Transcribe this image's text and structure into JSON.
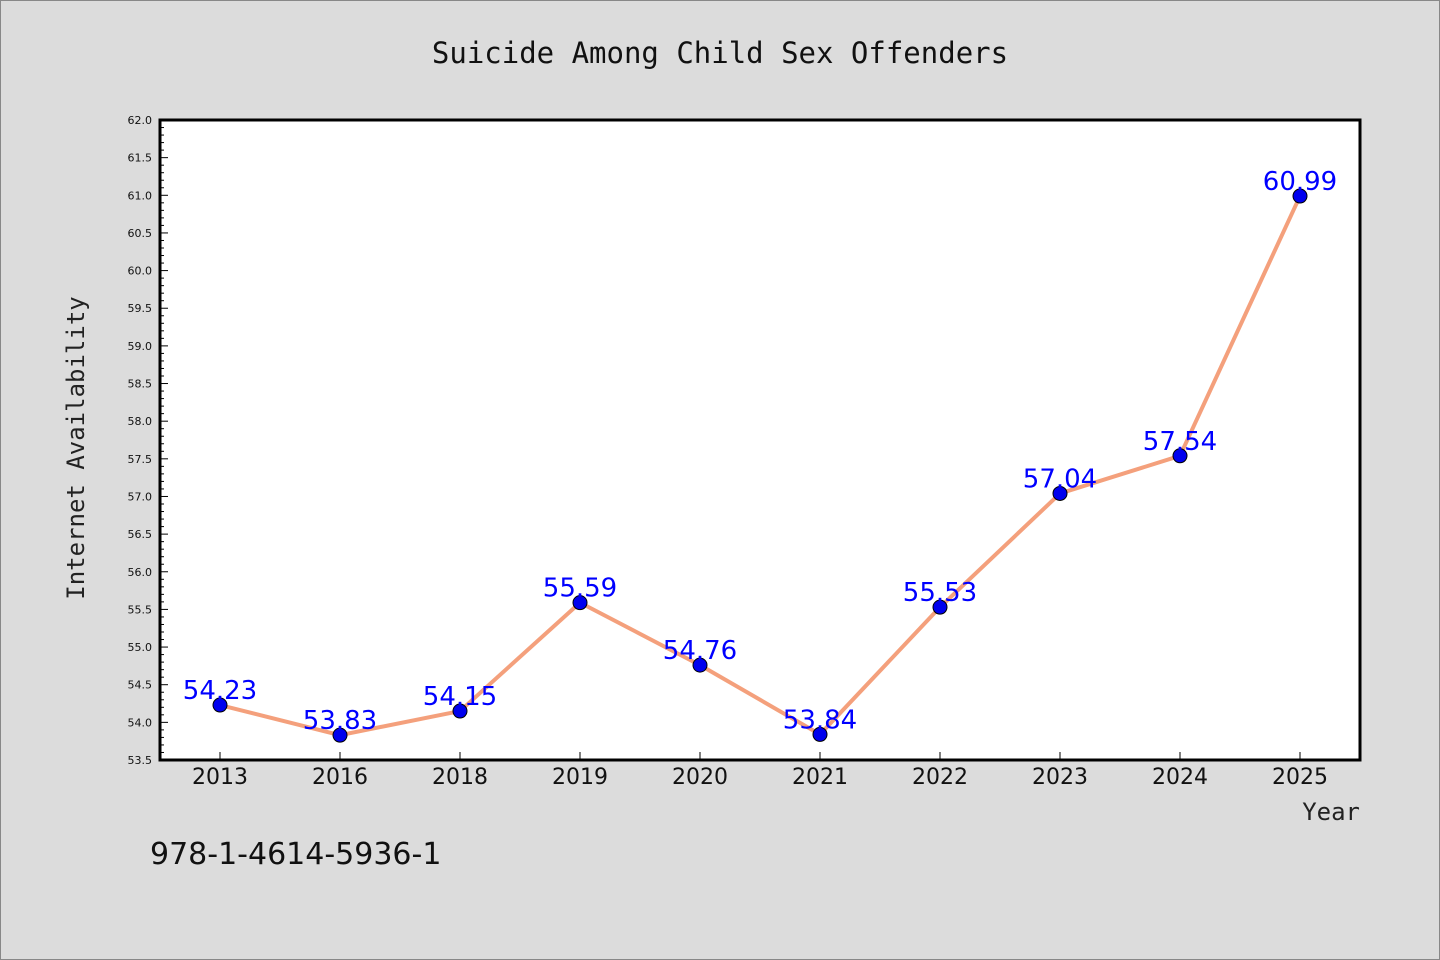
{
  "chart_data": {
    "type": "line",
    "title": "Suicide Among Child Sex Offenders",
    "xlabel": "Year",
    "ylabel": "Internet Availability",
    "categories": [
      "2013",
      "2016",
      "2018",
      "2019",
      "2020",
      "2021",
      "2022",
      "2023",
      "2024",
      "2025"
    ],
    "series": [
      {
        "values": [
          54.23,
          53.83,
          54.15,
          55.59,
          54.76,
          53.84,
          55.53,
          57.04,
          57.54,
          60.99
        ],
        "color": "#f4a07c",
        "marker_color": "#0000ee"
      }
    ],
    "data_labels": [
      "54.23",
      "53.83",
      "54.15",
      "55.59",
      "54.76",
      "53.84",
      "55.53",
      "57.04",
      "57.54",
      "60.99"
    ],
    "ylim": [
      53.5,
      62.0
    ],
    "yticks": [
      "53.5",
      "54.0",
      "54.5",
      "55.0",
      "55.5",
      "56.0",
      "56.5",
      "57.0",
      "57.5",
      "58.0",
      "58.5",
      "59.0",
      "59.5",
      "60.0",
      "60.5",
      "61.0",
      "61.5",
      "62.0"
    ],
    "grid": false,
    "legend": "none"
  },
  "caption": "978-1-4614-5936-1",
  "colors": {
    "background": "#dcdcdc",
    "plot_background": "#ffffff",
    "label": "#0000ff"
  }
}
